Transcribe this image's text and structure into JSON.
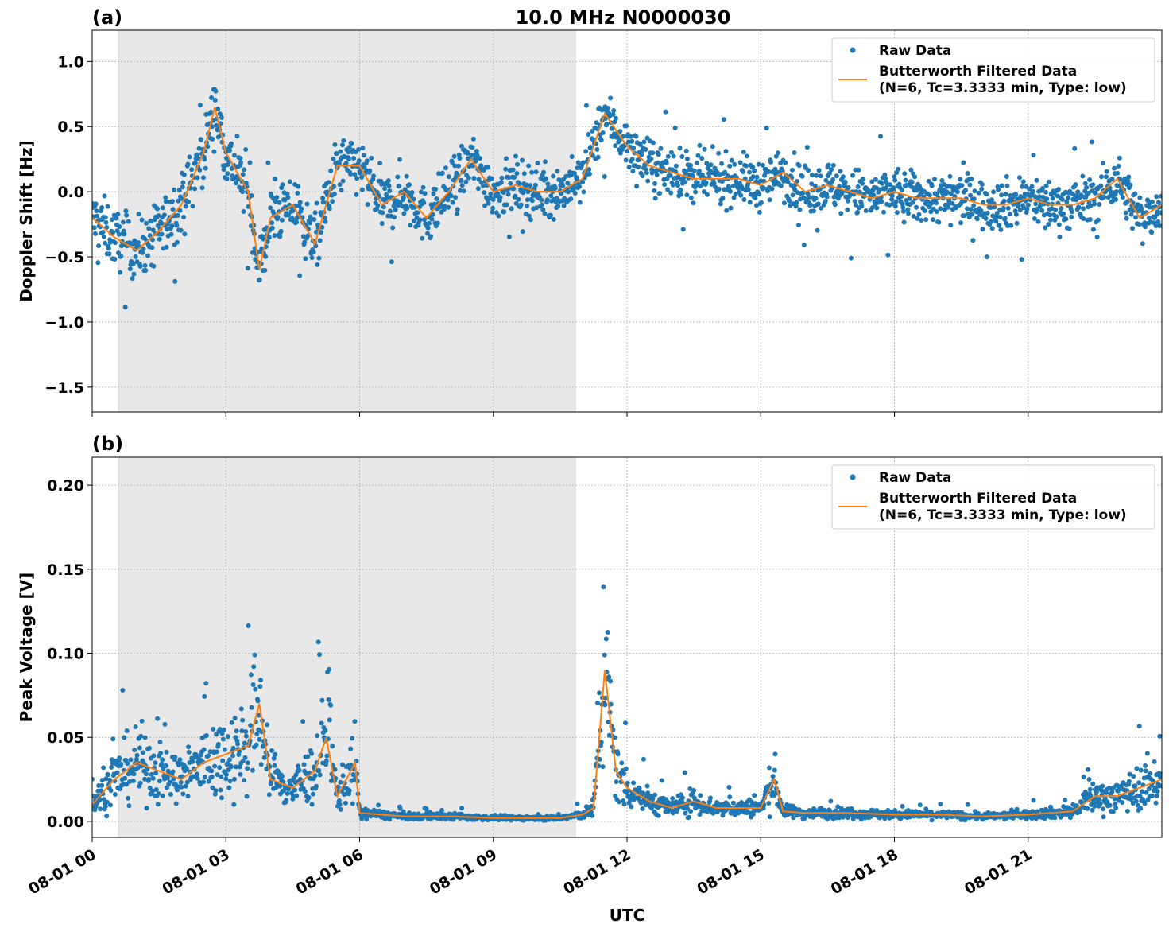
{
  "title": "10.0 MHz N0000030",
  "xlabel": "UTC",
  "x_tick_labels": [
    "08-01 00",
    "08-01 03",
    "08-01 06",
    "08-01 09",
    "08-01 12",
    "08-01 15",
    "08-01 18",
    "08-01 21"
  ],
  "x_ticks_hours": [
    0,
    3,
    6,
    9,
    12,
    15,
    18,
    21
  ],
  "x_range_hours": [
    0,
    24
  ],
  "shaded_interval_hours": [
    0.59,
    10.84
  ],
  "colors": {
    "raw": "#1f77b4",
    "filtered": "#ff7f0e",
    "shade": "#e8e8e8"
  },
  "legend": {
    "raw": "Raw Data",
    "filtered_line1": "Butterworth Filtered Data",
    "filtered_line2": "(N=6, Tc=3.3333 min, Type: low)",
    "placement": "top-right"
  },
  "chart_data": [
    {
      "type": "scatter+line",
      "panel_label": "(a)",
      "ylabel": "Doppler Shift [Hz]",
      "ylim": [
        -1.69,
        1.24
      ],
      "y_ticks": [
        1.0,
        0.5,
        0.0,
        -0.5,
        -1.0,
        -1.5
      ],
      "y_tick_labels": [
        "1.0",
        "0.5",
        "0.0",
        "−0.5",
        "−1.0",
        "−1.5"
      ],
      "grid": true,
      "filtered": {
        "name": "Butterworth Filtered Data",
        "x": [
          0,
          0.5,
          1,
          1.5,
          2,
          2.5,
          2.75,
          3,
          3.5,
          3.75,
          4,
          4.5,
          5,
          5.5,
          6,
          6.5,
          7,
          7.5,
          8,
          8.5,
          9,
          9.5,
          10,
          10.5,
          11,
          11.5,
          12,
          12.5,
          13,
          13.5,
          14,
          14.5,
          15,
          15.5,
          16,
          16.5,
          17,
          17.5,
          18,
          18.5,
          19,
          19.5,
          20,
          20.5,
          21,
          21.5,
          22,
          22.5,
          23,
          23.5,
          24
        ],
        "y": [
          -0.2,
          -0.35,
          -0.45,
          -0.3,
          -0.1,
          0.3,
          0.65,
          0.3,
          0.0,
          -0.6,
          -0.2,
          -0.1,
          -0.4,
          0.2,
          0.2,
          -0.1,
          0.0,
          -0.2,
          0.0,
          0.25,
          0.0,
          0.05,
          0.0,
          0.0,
          0.1,
          0.6,
          0.35,
          0.2,
          0.15,
          0.1,
          0.1,
          0.1,
          0.05,
          0.15,
          0.0,
          0.05,
          0.0,
          -0.05,
          0.0,
          -0.05,
          -0.05,
          -0.05,
          -0.1,
          -0.1,
          -0.05,
          -0.1,
          -0.1,
          -0.05,
          0.1,
          -0.2,
          -0.1
        ]
      },
      "raw": {
        "name": "Raw Data",
        "spread_hours": [
          0,
          6,
          11,
          24
        ],
        "spread_values": [
          0.35,
          0.35,
          0.3,
          0.3
        ]
      }
    },
    {
      "type": "scatter+line",
      "panel_label": "(b)",
      "ylabel": "Peak Voltage [V]",
      "ylim": [
        -0.0095,
        0.2166
      ],
      "y_ticks": [
        0.2,
        0.15,
        0.1,
        0.05,
        0.0
      ],
      "y_tick_labels": [
        "0.20",
        "0.15",
        "0.10",
        "0.05",
        "0.00"
      ],
      "grid": true,
      "filtered": {
        "name": "Butterworth Filtered Data",
        "x": [
          0,
          0.5,
          1,
          1.5,
          2,
          2.5,
          3,
          3.5,
          3.75,
          4,
          4.5,
          5,
          5.25,
          5.5,
          5.9,
          6,
          6.5,
          7,
          8,
          9,
          10,
          10.5,
          11,
          11.25,
          11.5,
          11.75,
          12,
          12.5,
          13,
          13.5,
          14,
          15,
          15.3,
          15.5,
          16,
          17,
          18,
          19,
          20,
          21,
          22,
          22.5,
          23,
          23.5,
          24
        ],
        "y": [
          0.01,
          0.025,
          0.035,
          0.03,
          0.025,
          0.035,
          0.04,
          0.045,
          0.07,
          0.025,
          0.02,
          0.03,
          0.05,
          0.015,
          0.035,
          0.005,
          0.004,
          0.003,
          0.003,
          0.002,
          0.002,
          0.002,
          0.004,
          0.008,
          0.09,
          0.03,
          0.02,
          0.012,
          0.008,
          0.012,
          0.008,
          0.008,
          0.025,
          0.006,
          0.005,
          0.005,
          0.004,
          0.004,
          0.003,
          0.004,
          0.006,
          0.015,
          0.015,
          0.02,
          0.025
        ]
      },
      "raw": {
        "name": "Raw Data",
        "relative_spread": 0.9
      }
    }
  ]
}
